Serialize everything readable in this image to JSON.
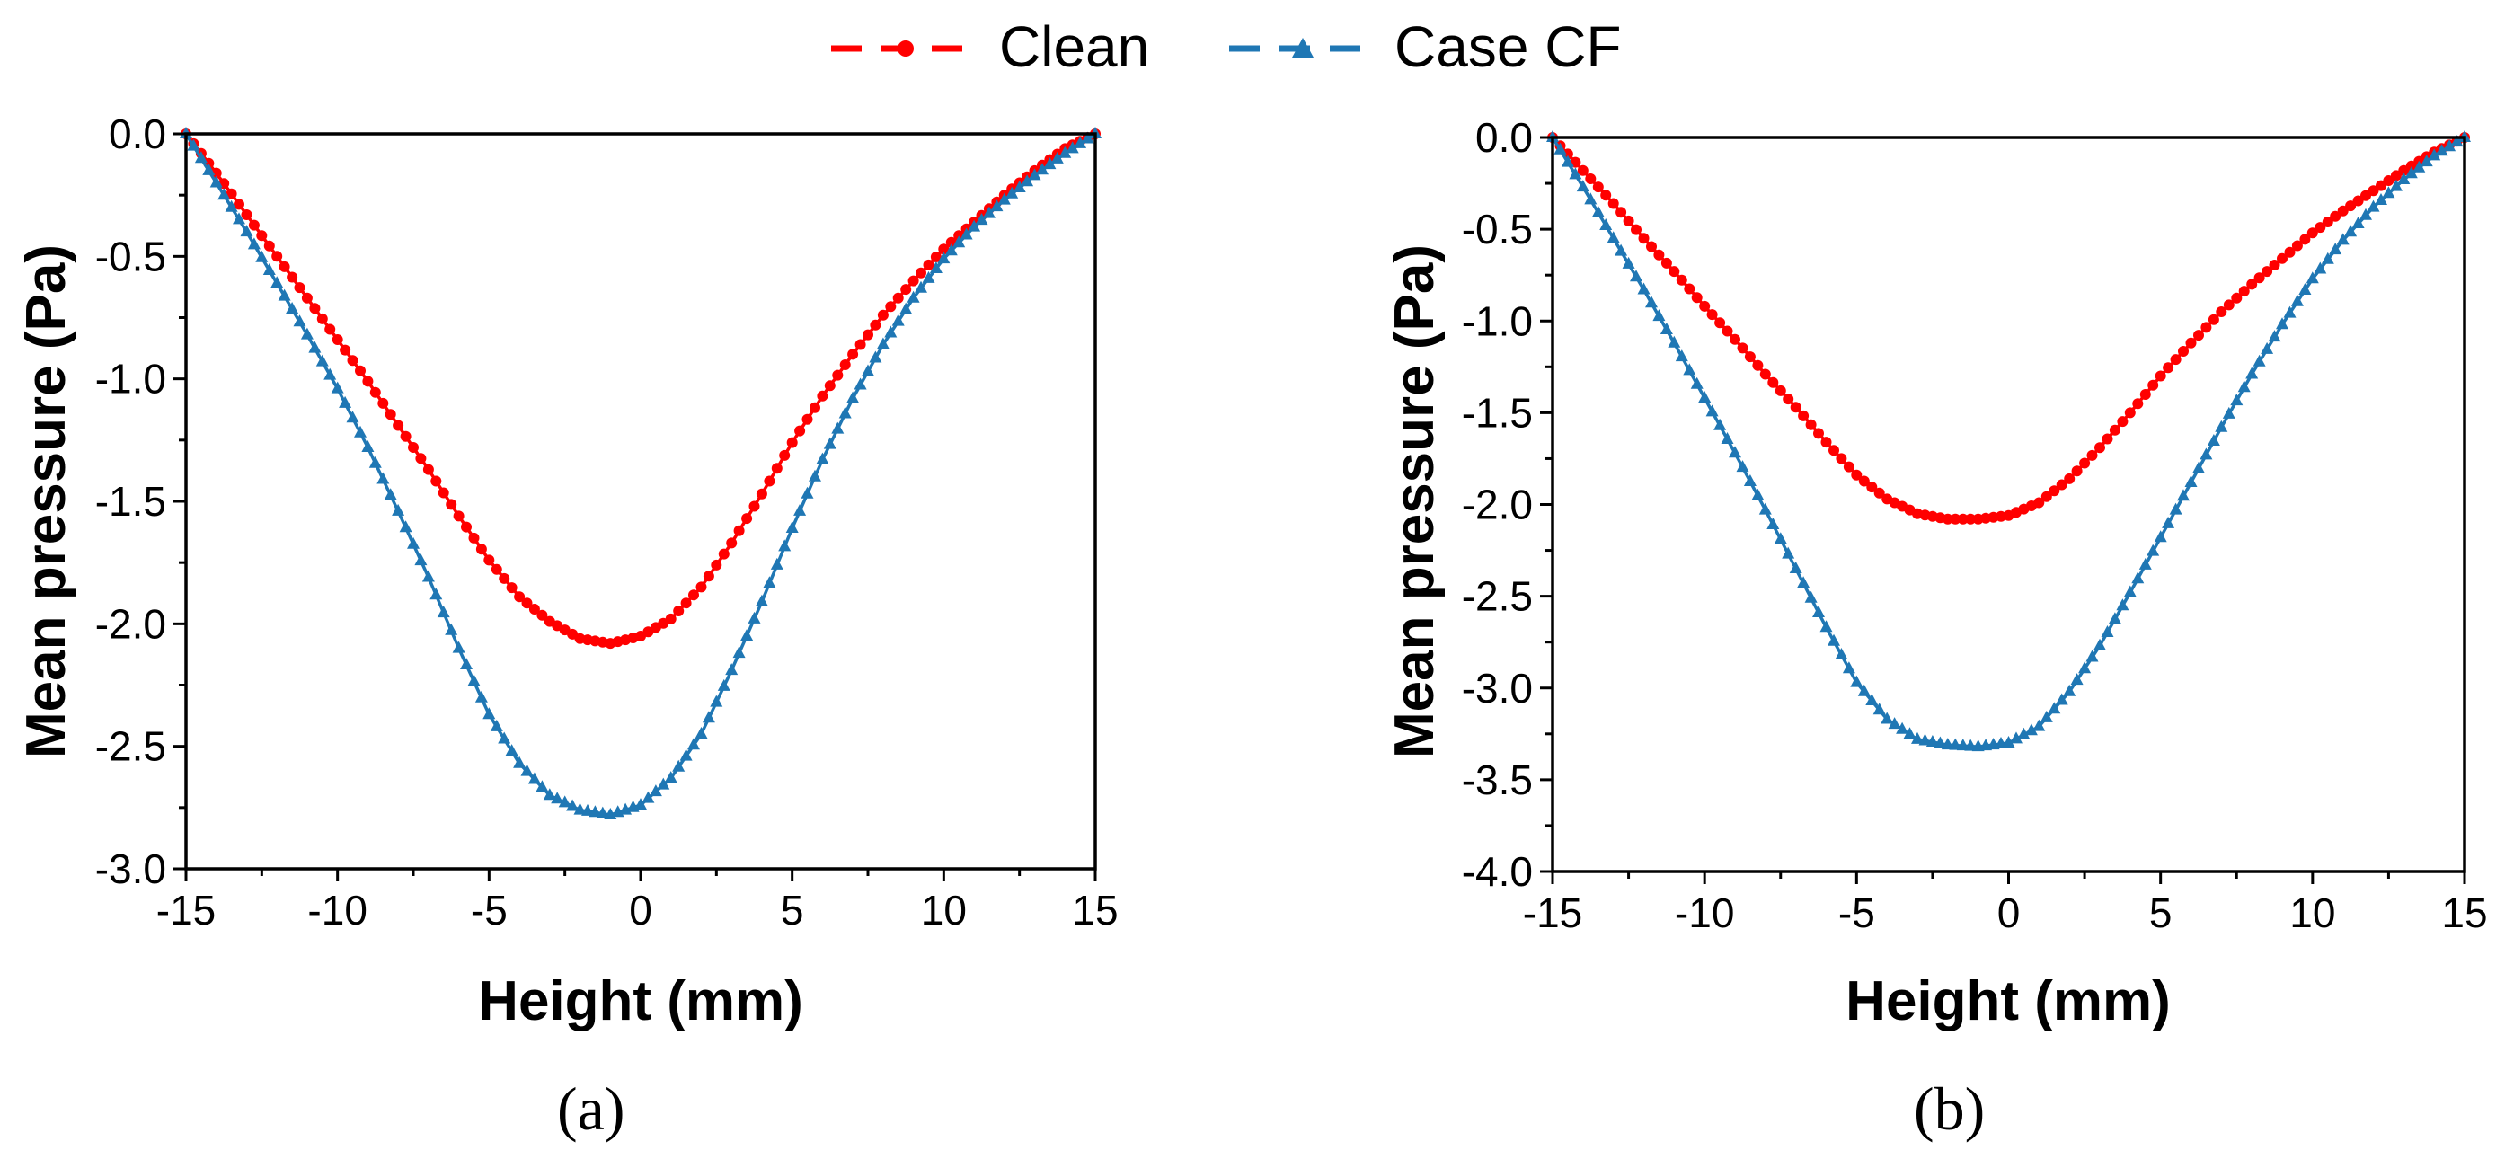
{
  "legend": {
    "placement": "top-center",
    "items": [
      {
        "label": "Clean",
        "color": "#ff0000",
        "marker": "circle",
        "line": "dashed"
      },
      {
        "label": "Case CF",
        "color": "#1f77b4",
        "marker": "triangle",
        "line": "dashed"
      }
    ]
  },
  "chart_data": [
    {
      "type": "line",
      "panel_label": "(a)",
      "xlabel": "Height (mm)",
      "ylabel": "Mean pressure (Pa)",
      "xlim": [
        -15,
        15
      ],
      "ylim": [
        -3.0,
        0.0
      ],
      "xticks": [
        -15,
        -10,
        -5,
        0,
        5,
        10,
        15
      ],
      "xtick_labels": [
        "-15",
        "-10",
        "-5",
        "0",
        "5",
        "10",
        "15"
      ],
      "yticks": [
        0.0,
        -0.5,
        -1.0,
        -1.5,
        -2.0,
        -2.5,
        -3.0
      ],
      "ytick_labels": [
        "0.0",
        "-0.5",
        "-1.0",
        "-1.5",
        "-2.0",
        "-2.5",
        "-3.0"
      ],
      "grid": false,
      "series": [
        {
          "name": "Clean",
          "color": "#ff0000",
          "x": [
            -15,
            -14,
            -13,
            -12,
            -11,
            -10,
            -9,
            -8,
            -7,
            -6,
            -5,
            -4,
            -3,
            -2,
            -1,
            0,
            1,
            2,
            3,
            4,
            5,
            6,
            7,
            8,
            9,
            10,
            11,
            12,
            13,
            14,
            15
          ],
          "y": [
            0.0,
            -0.16,
            -0.33,
            -0.5,
            -0.67,
            -0.84,
            -1.01,
            -1.19,
            -1.37,
            -1.56,
            -1.74,
            -1.89,
            -1.99,
            -2.06,
            -2.08,
            -2.05,
            -1.98,
            -1.85,
            -1.67,
            -1.47,
            -1.26,
            -1.07,
            -0.9,
            -0.74,
            -0.6,
            -0.47,
            -0.36,
            -0.25,
            -0.15,
            -0.06,
            0.0
          ]
        },
        {
          "name": "Case CF",
          "color": "#1f77b4",
          "x": [
            -15,
            -14,
            -13,
            -12,
            -11,
            -10,
            -9,
            -8,
            -7,
            -6,
            -5,
            -4,
            -3,
            -2,
            -1,
            0,
            1,
            2,
            3,
            4,
            5,
            6,
            7,
            8,
            9,
            10,
            11,
            12,
            13,
            14,
            15
          ],
          "y": [
            0.0,
            -0.2,
            -0.4,
            -0.61,
            -0.82,
            -1.04,
            -1.28,
            -1.54,
            -1.81,
            -2.1,
            -2.37,
            -2.57,
            -2.7,
            -2.76,
            -2.78,
            -2.74,
            -2.63,
            -2.45,
            -2.19,
            -1.91,
            -1.61,
            -1.33,
            -1.08,
            -0.86,
            -0.67,
            -0.51,
            -0.38,
            -0.27,
            -0.17,
            -0.08,
            0.0
          ]
        }
      ]
    },
    {
      "type": "line",
      "panel_label": "(b)",
      "xlabel": "Height (mm)",
      "ylabel": "Mean pressure (Pa)",
      "xlim": [
        -15,
        15
      ],
      "ylim": [
        -4.0,
        0.0
      ],
      "xticks": [
        -15,
        -10,
        -5,
        0,
        5,
        10,
        15
      ],
      "xtick_labels": [
        "-15",
        "-10",
        "-5",
        "0",
        "5",
        "10",
        "15"
      ],
      "yticks": [
        0.0,
        -0.5,
        -1.0,
        -1.5,
        -2.0,
        -2.5,
        -3.0,
        -3.5,
        -4.0
      ],
      "ytick_labels": [
        "0.0",
        "-0.5",
        "-1.0",
        "-1.5",
        "-2.0",
        "-2.5",
        "-3.0",
        "-3.5",
        "-4.0"
      ],
      "grid": false,
      "series": [
        {
          "name": "Clean",
          "color": "#ff0000",
          "x": [
            -15,
            -14,
            -13,
            -12,
            -11,
            -10,
            -9,
            -8,
            -7,
            -6,
            -5,
            -4,
            -3,
            -2,
            -1,
            0,
            1,
            2,
            3,
            4,
            5,
            6,
            7,
            8,
            9,
            10,
            11,
            12,
            13,
            14,
            15
          ],
          "y": [
            0.0,
            -0.18,
            -0.36,
            -0.55,
            -0.73,
            -0.92,
            -1.1,
            -1.29,
            -1.47,
            -1.66,
            -1.84,
            -1.97,
            -2.05,
            -2.08,
            -2.08,
            -2.06,
            -1.99,
            -1.86,
            -1.69,
            -1.5,
            -1.3,
            -1.12,
            -0.95,
            -0.8,
            -0.66,
            -0.52,
            -0.4,
            -0.29,
            -0.18,
            -0.08,
            0.0
          ]
        },
        {
          "name": "Case CF",
          "color": "#1f77b4",
          "x": [
            -15,
            -14,
            -13,
            -12,
            -11,
            -10,
            -9,
            -8,
            -7,
            -6,
            -5,
            -4,
            -3,
            -2,
            -1,
            0,
            1,
            2,
            3,
            4,
            5,
            6,
            7,
            8,
            9,
            10,
            11,
            12,
            13,
            14,
            15
          ],
          "y": [
            0.0,
            -0.27,
            -0.55,
            -0.83,
            -1.12,
            -1.42,
            -1.72,
            -2.03,
            -2.35,
            -2.67,
            -2.97,
            -3.17,
            -3.28,
            -3.31,
            -3.32,
            -3.3,
            -3.21,
            -3.02,
            -2.77,
            -2.48,
            -2.18,
            -1.88,
            -1.58,
            -1.29,
            -1.02,
            -0.77,
            -0.56,
            -0.38,
            -0.23,
            -0.1,
            0.0
          ]
        }
      ]
    }
  ]
}
